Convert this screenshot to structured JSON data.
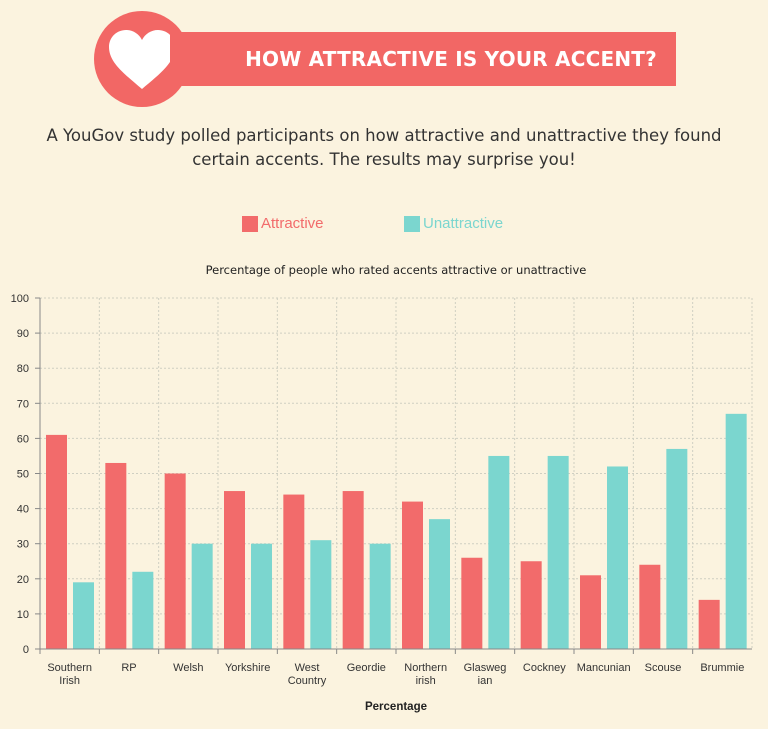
{
  "header": {
    "title": "HOW ATTRACTIVE IS YOUR ACCENT?",
    "intro": "A YouGov study polled participants on how attractive and unattractive they found certain accents. The results may surprise you!"
  },
  "colors": {
    "background": "#fbf3df",
    "accent": "#f26765",
    "attractive": "#f26b6b",
    "unattractive": "#7bd6cf",
    "grid": "#cfcfc2",
    "axis": "#888888",
    "text": "#333333"
  },
  "chart_data": {
    "type": "bar",
    "title": "Percentage of people who rated accents attractive or unattractive",
    "xlabel": "Percentage",
    "ylabel": "",
    "ylim": [
      0,
      100
    ],
    "yticks": [
      "0",
      "10",
      "20",
      "30",
      "40",
      "50",
      "60",
      "70",
      "80",
      "90",
      "100"
    ],
    "grid": true,
    "legend_position": "top",
    "categories": [
      [
        "Southern",
        "Irish"
      ],
      [
        "RP"
      ],
      [
        "Welsh"
      ],
      [
        "Yorkshire"
      ],
      [
        "West",
        "Country"
      ],
      [
        "Geordie"
      ],
      [
        "Northern",
        "irish"
      ],
      [
        "Glasweg",
        "ian"
      ],
      [
        "Cockney"
      ],
      [
        "Mancunian"
      ],
      [
        "Scouse"
      ],
      [
        "Brummie"
      ]
    ],
    "series": [
      {
        "name": "Attractive",
        "values": [
          61,
          53,
          50,
          45,
          44,
          45,
          42,
          26,
          25,
          21,
          24,
          14
        ]
      },
      {
        "name": "Unattractive",
        "values": [
          19,
          22,
          30,
          30,
          31,
          30,
          37,
          55,
          55,
          52,
          57,
          67
        ]
      }
    ]
  }
}
